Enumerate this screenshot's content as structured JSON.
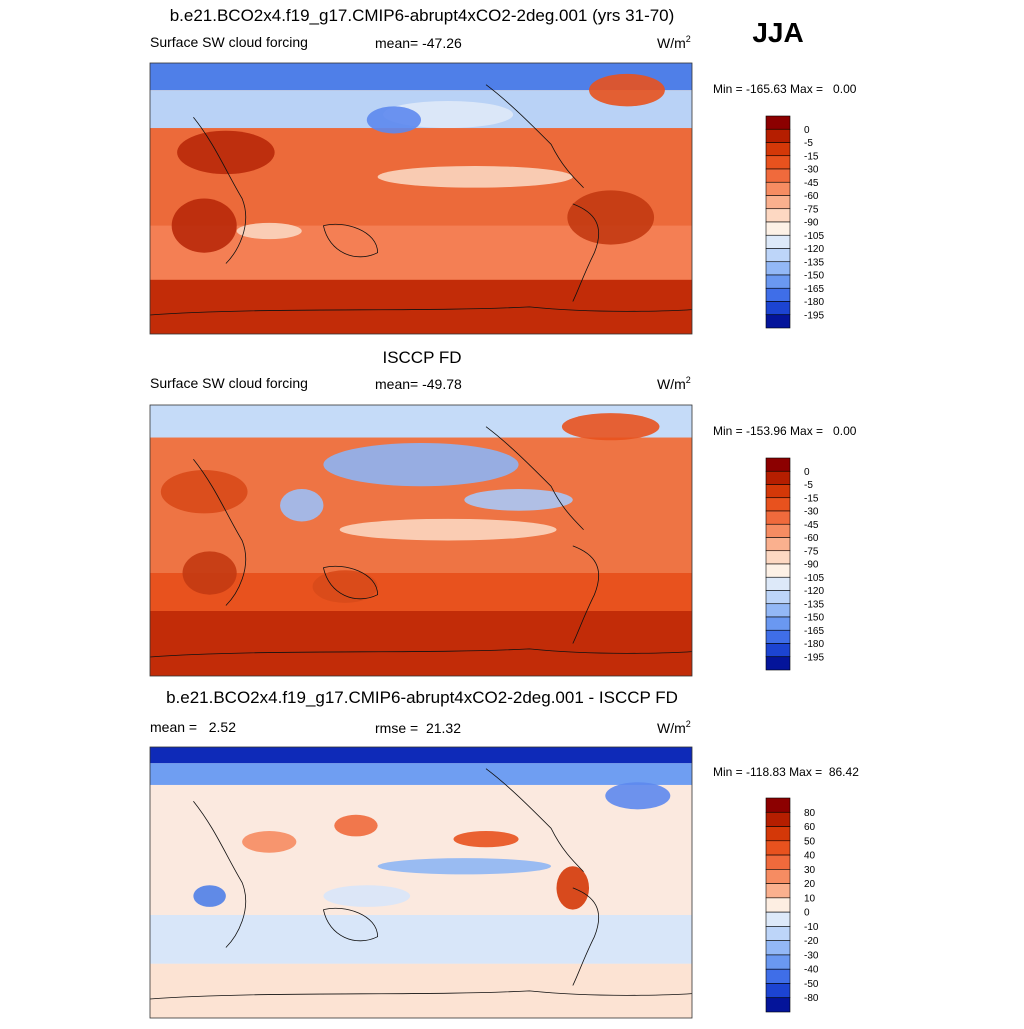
{
  "header": {
    "season": "JJA"
  },
  "panels": [
    {
      "title": "b.e21.BCO2x4.f19_g17.CMIP6-abrupt4xCO2-2deg.001 (yrs 31-70)",
      "left_label": "Surface SW cloud forcing",
      "center_label": "mean= -47.26",
      "units": {
        "base": "W/m",
        "sup": "2"
      },
      "min_max": "Min = -165.63 Max =   0.00",
      "colorbar": {
        "labels": [
          0,
          -5,
          -15,
          -30,
          -45,
          -60,
          -75,
          -90,
          -105,
          -120,
          -135,
          -150,
          -165,
          -180,
          -195
        ],
        "colors": [
          "#8c0000",
          "#b51e00",
          "#d43808",
          "#e8521e",
          "#f06a3c",
          "#f68c62",
          "#fab08e",
          "#fdd8c2",
          "#fdf1e6",
          "#dde9f9",
          "#bdd5f9",
          "#93b8f6",
          "#6a98f1",
          "#3f6ee8",
          "#1c44d2",
          "#04149a"
        ]
      }
    },
    {
      "title": "ISCCP FD",
      "left_label": "Surface SW cloud forcing",
      "center_label": "mean= -49.78",
      "units": {
        "base": "W/m",
        "sup": "2"
      },
      "min_max": "Min = -153.96 Max =   0.00",
      "colorbar": {
        "labels": [
          0,
          -5,
          -15,
          -30,
          -45,
          -60,
          -75,
          -90,
          -105,
          -120,
          -135,
          -150,
          -165,
          -180,
          -195
        ],
        "colors": [
          "#8c0000",
          "#b51e00",
          "#d43808",
          "#e8521e",
          "#f06a3c",
          "#f68c62",
          "#fab08e",
          "#fdd8c2",
          "#fdf1e6",
          "#dde9f9",
          "#bdd5f9",
          "#93b8f6",
          "#6a98f1",
          "#3f6ee8",
          "#1c44d2",
          "#04149a"
        ]
      }
    },
    {
      "title": "b.e21.BCO2x4.f19_g17.CMIP6-abrupt4xCO2-2deg.001 - ISCCP FD",
      "left_label": "mean =   2.52",
      "center_label": "rmse =  21.32",
      "units": {
        "base": "W/m",
        "sup": "2"
      },
      "min_max": "Min = -118.83 Max =  86.42",
      "colorbar": {
        "labels": [
          80,
          60,
          50,
          40,
          30,
          20,
          10,
          0,
          -10,
          -20,
          -30,
          -40,
          -50,
          -80
        ],
        "colors": [
          "#8c0000",
          "#b51e00",
          "#d43808",
          "#e8521e",
          "#f06a3c",
          "#f68c62",
          "#fab08e",
          "#fdeee2",
          "#dde9f9",
          "#bdd5f9",
          "#93b8f6",
          "#6a98f1",
          "#3f6ee8",
          "#1c44d2",
          "#04149a"
        ]
      }
    }
  ]
}
